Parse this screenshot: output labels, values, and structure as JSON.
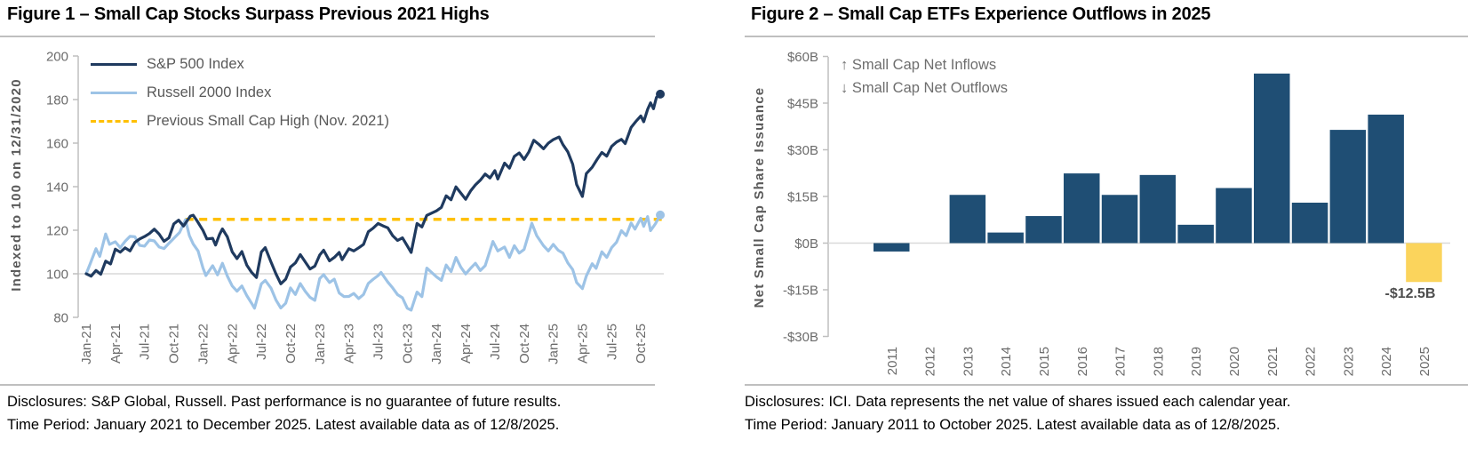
{
  "figure1": {
    "title": "Figure 1 – Small Cap Stocks Surpass Previous 2021 Highs",
    "footer1": "Disclosures: S&P Global, Russell. Past performance is no guarantee of future results.",
    "footer2": "Time Period: January 2021 to December 2025. Latest available data as of 12/8/2025."
  },
  "figure2": {
    "title": "Figure 2 – Small Cap ETFs Experience Outflows in 2025",
    "footer1": "Disclosures: ICI. Data represents the net value of shares issued each calendar year.",
    "footer2": "Time Period: January 2011 to October 2025. Latest available data as of 12/8/2025."
  },
  "chart_data": [
    {
      "type": "line",
      "title": "Figure 1 – Small Cap Stocks Surpass Previous 2021 Highs",
      "ylabel": "Indexed to 100 on 12/31/2020",
      "ylim": [
        80,
        200
      ],
      "yticks": [
        200,
        180,
        160,
        140,
        120,
        100,
        80
      ],
      "gridlines": [
        100
      ],
      "xtick_labels": [
        "Jan-21",
        "Apr-21",
        "Jul-21",
        "Oct-21",
        "Jan-22",
        "Apr-22",
        "Jul-22",
        "Oct-22",
        "Jan-23",
        "Apr-23",
        "Jul-23",
        "Oct-23",
        "Jan-24",
        "Apr-24",
        "Jul-24",
        "Oct-24",
        "Jan-25",
        "Apr-25",
        "Jul-25",
        "Oct-25"
      ],
      "x_unit": "months since Jan-2021",
      "legend_position": "top-left",
      "reference_line": {
        "name": "Previous Small Cap High (Nov. 2021)",
        "value": 125,
        "start_month": 10.2,
        "color": "#FFC000",
        "style": "dashed"
      },
      "series": [
        {
          "name": "S&P 500 Index",
          "color": "#1F3A5F",
          "end_dot": true,
          "points": [
            [
              0,
              100
            ],
            [
              0.5,
              98.9
            ],
            [
              1,
              101.5
            ],
            [
              1.5,
              99.8
            ],
            [
              2,
              105.8
            ],
            [
              2.5,
              104.5
            ],
            [
              3,
              111.3
            ],
            [
              3.5,
              109.9
            ],
            [
              4,
              111.9
            ],
            [
              4.5,
              110.5
            ],
            [
              5,
              114.4
            ],
            [
              5.5,
              116
            ],
            [
              6,
              117.1
            ],
            [
              6.5,
              118.5
            ],
            [
              7,
              120.5
            ],
            [
              7.5,
              118.2
            ],
            [
              8,
              114.9
            ],
            [
              8.5,
              116.5
            ],
            [
              9,
              122.9
            ],
            [
              9.5,
              124.6
            ],
            [
              10,
              121.9
            ],
            [
              10.7,
              126.5
            ],
            [
              11,
              126.9
            ],
            [
              11.4,
              124.3
            ],
            [
              12,
              119.9
            ],
            [
              12.4,
              116
            ],
            [
              13,
              116.3
            ],
            [
              13.3,
              113.2
            ],
            [
              13.7,
              118
            ],
            [
              14,
              120.6
            ],
            [
              14.5,
              117
            ],
            [
              15,
              110.1
            ],
            [
              15.5,
              107
            ],
            [
              16,
              110.2
            ],
            [
              16.5,
              104
            ],
            [
              17,
              100.7
            ],
            [
              17.5,
              98.3
            ],
            [
              18,
              110
            ],
            [
              18.4,
              112
            ],
            [
              19,
              105.4
            ],
            [
              19.5,
              100
            ],
            [
              20,
              95.4
            ],
            [
              20.5,
              97.5
            ],
            [
              21,
              103.1
            ],
            [
              21.5,
              105
            ],
            [
              22,
              108.8
            ],
            [
              22.5,
              105.5
            ],
            [
              23,
              102.2
            ],
            [
              23.5,
              103.5
            ],
            [
              24,
              108.6
            ],
            [
              24.4,
              110.8
            ],
            [
              25,
              105.9
            ],
            [
              25.5,
              107.5
            ],
            [
              26,
              109.8
            ],
            [
              26.3,
              106.5
            ],
            [
              27,
              111.5
            ],
            [
              27.5,
              110.5
            ],
            [
              28,
              111.9
            ],
            [
              28.5,
              113.5
            ],
            [
              29,
              119.3
            ],
            [
              29.5,
              121
            ],
            [
              30,
              123.1
            ],
            [
              30.5,
              122
            ],
            [
              31,
              121.1
            ],
            [
              31.5,
              117.5
            ],
            [
              32,
              115.3
            ],
            [
              32.5,
              116.5
            ],
            [
              33,
              112.8
            ],
            [
              33.4,
              109.8
            ],
            [
              34,
              123.1
            ],
            [
              34.5,
              121.5
            ],
            [
              35,
              126.8
            ],
            [
              36,
              128.9
            ],
            [
              36.5,
              130.5
            ],
            [
              37,
              135.8
            ],
            [
              37.5,
              134
            ],
            [
              38,
              139.9
            ],
            [
              38.6,
              136.5
            ],
            [
              39,
              134.2
            ],
            [
              39.5,
              138
            ],
            [
              40,
              140.8
            ],
            [
              40.5,
              143
            ],
            [
              41,
              145.8
            ],
            [
              41.5,
              144
            ],
            [
              42,
              147.4
            ],
            [
              42.3,
              143.5
            ],
            [
              43,
              150.8
            ],
            [
              43.5,
              148.5
            ],
            [
              44,
              153.9
            ],
            [
              44.5,
              155.5
            ],
            [
              45,
              152.5
            ],
            [
              45.5,
              156
            ],
            [
              46,
              161.3
            ],
            [
              46.5,
              159.5
            ],
            [
              47,
              157.4
            ],
            [
              47.5,
              160
            ],
            [
              48,
              161.6
            ],
            [
              48.6,
              162.8
            ],
            [
              49,
              159.3
            ],
            [
              49.5,
              156
            ],
            [
              50,
              150.3
            ],
            [
              50.4,
              141
            ],
            [
              51,
              135.5
            ],
            [
              51.4,
              146
            ],
            [
              52,
              148.9
            ],
            [
              52.5,
              152.5
            ],
            [
              53,
              155.7
            ],
            [
              53.5,
              154
            ],
            [
              54,
              158.5
            ],
            [
              54.5,
              160.5
            ],
            [
              55,
              161.7
            ],
            [
              55.4,
              159.8
            ],
            [
              56,
              167.2
            ],
            [
              56.5,
              170
            ],
            [
              57,
              172.5
            ],
            [
              57.3,
              169.8
            ],
            [
              57.7,
              175.5
            ],
            [
              58,
              178.5
            ],
            [
              58.3,
              175.8
            ],
            [
              58.6,
              181
            ],
            [
              59,
              182.5
            ]
          ]
        },
        {
          "name": "Russell 2000 Index",
          "color": "#9DC3E6",
          "end_dot": true,
          "points": [
            [
              0,
              100
            ],
            [
              0.4,
              104.5
            ],
            [
              1,
              111.5
            ],
            [
              1.4,
              108
            ],
            [
              2,
              118.3
            ],
            [
              2.4,
              113.5
            ],
            [
              3,
              114.7
            ],
            [
              3.5,
              112
            ],
            [
              4,
              114.9
            ],
            [
              4.5,
              117.2
            ],
            [
              5,
              117
            ],
            [
              5.5,
              113
            ],
            [
              6,
              112.7
            ],
            [
              6.5,
              115.5
            ],
            [
              7,
              115.1
            ],
            [
              7.5,
              112.3
            ],
            [
              8,
              111.6
            ],
            [
              8.5,
              114
            ],
            [
              9,
              116.3
            ],
            [
              9.6,
              119
            ],
            [
              10.2,
              124.8
            ],
            [
              10.6,
              117.5
            ],
            [
              11,
              113.7
            ],
            [
              11.5,
              110.5
            ],
            [
              12,
              102.7
            ],
            [
              12.3,
              99.2
            ],
            [
              13,
              103.7
            ],
            [
              13.5,
              99.5
            ],
            [
              14,
              104.8
            ],
            [
              14.5,
              99
            ],
            [
              15,
              94.4
            ],
            [
              15.5,
              92
            ],
            [
              16,
              94.4
            ],
            [
              16.5,
              90
            ],
            [
              17,
              86.5
            ],
            [
              17.3,
              84.2
            ],
            [
              18,
              95.4
            ],
            [
              18.4,
              97
            ],
            [
              19,
              93.4
            ],
            [
              19.5,
              88
            ],
            [
              20,
              84.3
            ],
            [
              20.5,
              86.5
            ],
            [
              21,
              93.5
            ],
            [
              21.5,
              90.5
            ],
            [
              22,
              95.5
            ],
            [
              22.5,
              92
            ],
            [
              23,
              89.2
            ],
            [
              23.5,
              87.8
            ],
            [
              24,
              97.8
            ],
            [
              24.4,
              99.6
            ],
            [
              25,
              96
            ],
            [
              25.5,
              97.5
            ],
            [
              26,
              91.2
            ],
            [
              26.5,
              89.5
            ],
            [
              27,
              89.6
            ],
            [
              27.5,
              91
            ],
            [
              28,
              88.6
            ],
            [
              28.5,
              90.5
            ],
            [
              29,
              95.6
            ],
            [
              29.5,
              97.5
            ],
            [
              30,
              99.2
            ],
            [
              30.3,
              100.6
            ],
            [
              31,
              96.2
            ],
            [
              31.5,
              93.5
            ],
            [
              32,
              90.4
            ],
            [
              32.5,
              89
            ],
            [
              33,
              84.2
            ],
            [
              33.4,
              83.3
            ],
            [
              34,
              91.6
            ],
            [
              34.5,
              89.5
            ],
            [
              35,
              102.6
            ],
            [
              36,
              98.6
            ],
            [
              36.5,
              97
            ],
            [
              37,
              104
            ],
            [
              37.5,
              101
            ],
            [
              38,
              107.5
            ],
            [
              38.5,
              103
            ],
            [
              39,
              99.9
            ],
            [
              39.5,
              102.5
            ],
            [
              40,
              104.8
            ],
            [
              40.5,
              101.5
            ],
            [
              41,
              103.7
            ],
            [
              41.8,
              114.8
            ],
            [
              42.3,
              110.5
            ],
            [
              43,
              112.3
            ],
            [
              43.5,
              107.5
            ],
            [
              44,
              112.9
            ],
            [
              44.5,
              109.5
            ],
            [
              45,
              111.2
            ],
            [
              45.8,
              123.2
            ],
            [
              46.3,
              117.5
            ],
            [
              47,
              112.9
            ],
            [
              47.5,
              110.5
            ],
            [
              48,
              113.5
            ],
            [
              48.5,
              110.8
            ],
            [
              49,
              109.5
            ],
            [
              49.5,
              105
            ],
            [
              50,
              101.9
            ],
            [
              50.4,
              96
            ],
            [
              51,
              93.2
            ],
            [
              51.4,
              99
            ],
            [
              52,
              104.6
            ],
            [
              52.4,
              102.5
            ],
            [
              53,
              110.1
            ],
            [
              53.5,
              107.5
            ],
            [
              54,
              112
            ],
            [
              54.5,
              114.5
            ],
            [
              55,
              119.8
            ],
            [
              55.5,
              117.5
            ],
            [
              56,
              123.3
            ],
            [
              56.4,
              120.5
            ],
            [
              57,
              125.5
            ],
            [
              57.3,
              121.8
            ],
            [
              57.7,
              126.3
            ],
            [
              58,
              119.8
            ],
            [
              58.5,
              123
            ],
            [
              59,
              127
            ]
          ]
        }
      ]
    },
    {
      "type": "bar",
      "title": "Figure 2 – Small Cap ETFs Experience Outflows in 2025",
      "ylabel": "Net Small Cap Share Issuance",
      "ylim": [
        -30,
        60
      ],
      "yticks": [
        {
          "v": 60,
          "label": "$60B"
        },
        {
          "v": 45,
          "label": "$45B"
        },
        {
          "v": 30,
          "label": "$30B"
        },
        {
          "v": 15,
          "label": "$15B"
        },
        {
          "v": 0,
          "label": "$0B"
        },
        {
          "v": -15,
          "label": "-$15B"
        },
        {
          "v": -30,
          "label": "-$30B"
        }
      ],
      "categories": [
        "2011",
        "2012",
        "2013",
        "2014",
        "2015",
        "2016",
        "2017",
        "2018",
        "2019",
        "2020",
        "2021",
        "2022",
        "2023",
        "2024",
        "2025"
      ],
      "values": [
        -2.7,
        0,
        15.5,
        3.4,
        8.7,
        22.4,
        15.5,
        21.9,
        5.9,
        17.7,
        54.5,
        13.0,
        36.4,
        41.3,
        -12.5
      ],
      "bar_color": "#1F4E74",
      "highlight_color": "#FBD45C",
      "highlight_category": "2025",
      "annotations": [
        "↑ Small Cap Net  Inflows",
        "↓ Small Cap Net  Outflows"
      ],
      "data_label": {
        "category": "2025",
        "text": "-$12.5B"
      }
    }
  ]
}
